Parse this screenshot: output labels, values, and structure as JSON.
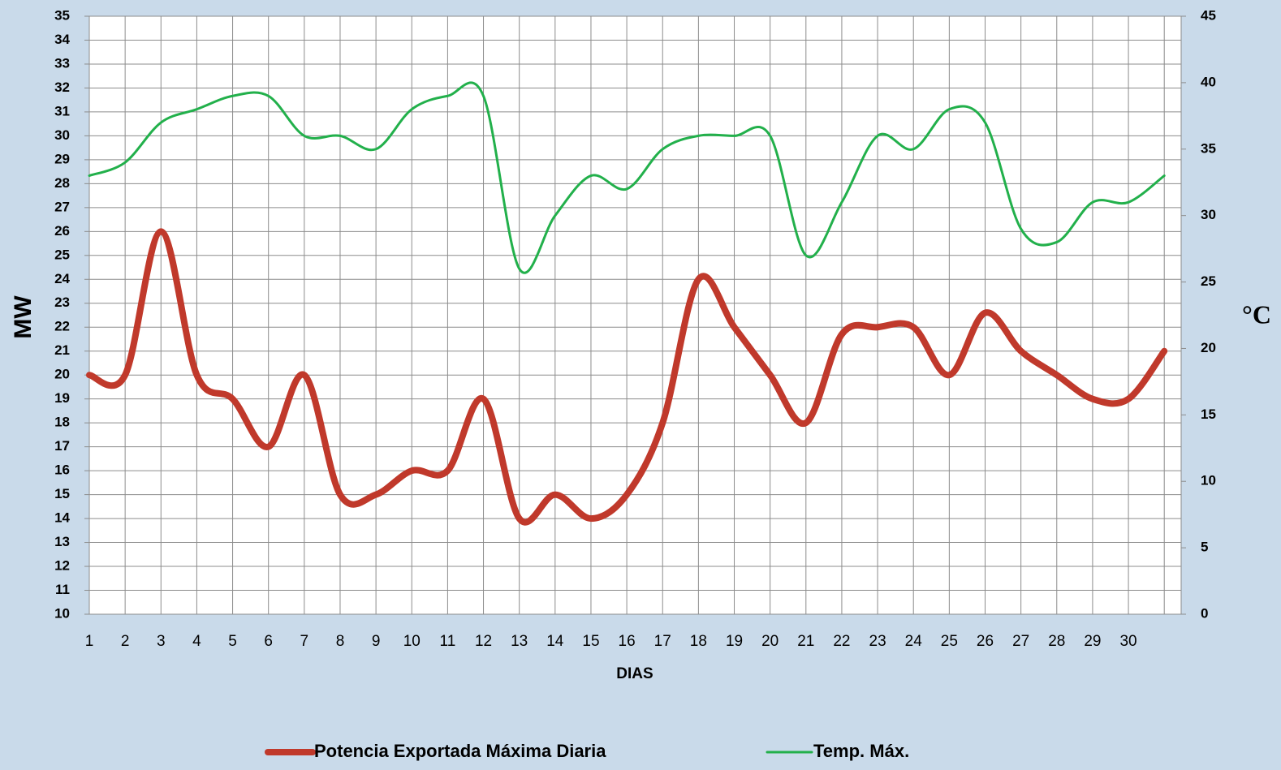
{
  "chart_data": {
    "type": "line",
    "x_label": "DIAS",
    "y_label": "MW",
    "y2_label": "°C",
    "categories": [
      "1",
      "2",
      "3",
      "4",
      "5",
      "6",
      "7",
      "8",
      "9",
      "10",
      "11",
      "12",
      "13",
      "14",
      "15",
      "16",
      "17",
      "18",
      "19",
      "20",
      "21",
      "22",
      "23",
      "24",
      "25",
      "26",
      "27",
      "28",
      "29",
      "30",
      null
    ],
    "series": [
      {
        "name": "Potencia Exportada Máxima Diaria",
        "color": "#c0392b",
        "values": [
          20,
          20,
          26,
          20,
          19,
          17,
          20,
          15,
          15,
          16,
          16,
          19,
          14,
          15,
          14,
          15,
          18,
          24,
          22,
          20,
          18,
          21.7,
          22,
          22,
          20,
          22.6,
          21,
          20,
          19,
          19,
          21
        ]
      },
      {
        "name": "Temp. Máx.",
        "color": "#22b04b",
        "axis": "y2",
        "values": [
          33,
          34,
          37,
          38,
          39,
          39,
          36,
          36,
          35,
          38,
          39,
          39,
          26,
          30,
          33,
          32,
          35,
          36,
          36,
          36,
          27,
          31,
          36,
          35,
          38,
          37,
          29,
          28,
          31,
          31,
          33
        ]
      }
    ],
    "ylim": [
      10,
      35
    ],
    "yticks": [
      10,
      11,
      12,
      13,
      14,
      15,
      16,
      17,
      18,
      19,
      20,
      21,
      22,
      23,
      24,
      25,
      26,
      27,
      28,
      29,
      30,
      31,
      32,
      33,
      34,
      35
    ],
    "y2lim": [
      0,
      45
    ],
    "y2ticks": [
      0,
      5,
      10,
      15,
      20,
      25,
      30,
      35,
      40,
      45
    ],
    "grid": true,
    "legend": "bottom"
  }
}
